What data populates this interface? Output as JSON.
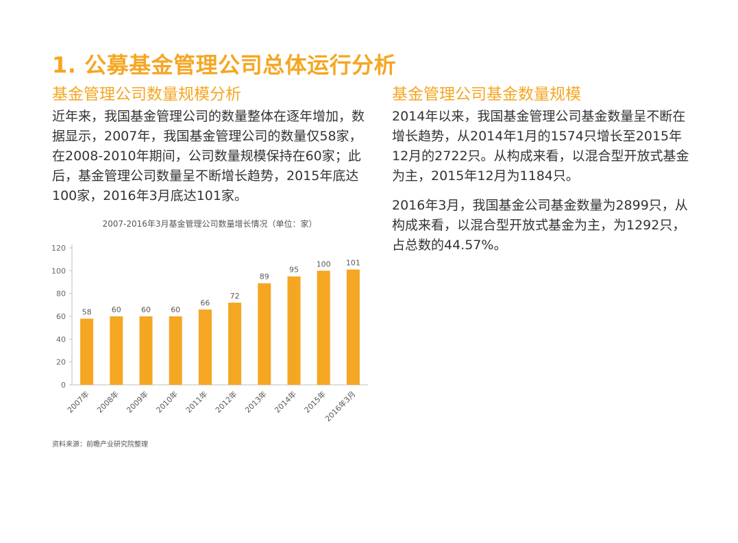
{
  "main_title": "1. 公募基金管理公司总体运行分析",
  "left": {
    "title": "基金管理公司数量规模分析",
    "paragraph": "近年来，我国基金管理公司的数量整体在逐年增加，数据显示，2007年，我国基金管理公司的数量仅58家，在2008-2010年期间，公司数量规模保持在60家；此后，基金管理公司数量呈不断增长趋势，2015年底达100家，2016年3月底达101家。"
  },
  "right": {
    "title": "基金管理公司基金数量规模",
    "paragraph1": "2014年以来，我国基金管理公司基金数量呈不断在增长趋势，从2014年1月的1574只增长至2015年12月的2722只。从构成来看，以混合型开放式基金为主，2015年12月为1184只。",
    "paragraph2": "2016年3月，我国基金公司基金数量为2899只，从构成来看，以混合型开放式基金为主，为1292只，占总数的44.57%。"
  },
  "source": "资料来源：前瞻产业研究院整理",
  "colors": {
    "accent": "#f5a623",
    "bar": "#f5a623",
    "text": "#333333"
  },
  "chart_data": {
    "type": "bar",
    "title": "2007-2016年3月基金管理公司数量增长情况（单位：家）",
    "categories": [
      "2007年",
      "2008年",
      "2009年",
      "2010年",
      "2011年",
      "2012年",
      "2013年",
      "2014年",
      "2015年",
      "2016年3月"
    ],
    "values": [
      58,
      60,
      60,
      60,
      66,
      72,
      89,
      95,
      100,
      101
    ],
    "yticks": [
      0,
      20,
      40,
      60,
      80,
      100,
      120
    ],
    "ylim": [
      0,
      120
    ],
    "xlabel": "",
    "ylabel": "",
    "grid": false,
    "legend": "none",
    "data_labels": true
  }
}
